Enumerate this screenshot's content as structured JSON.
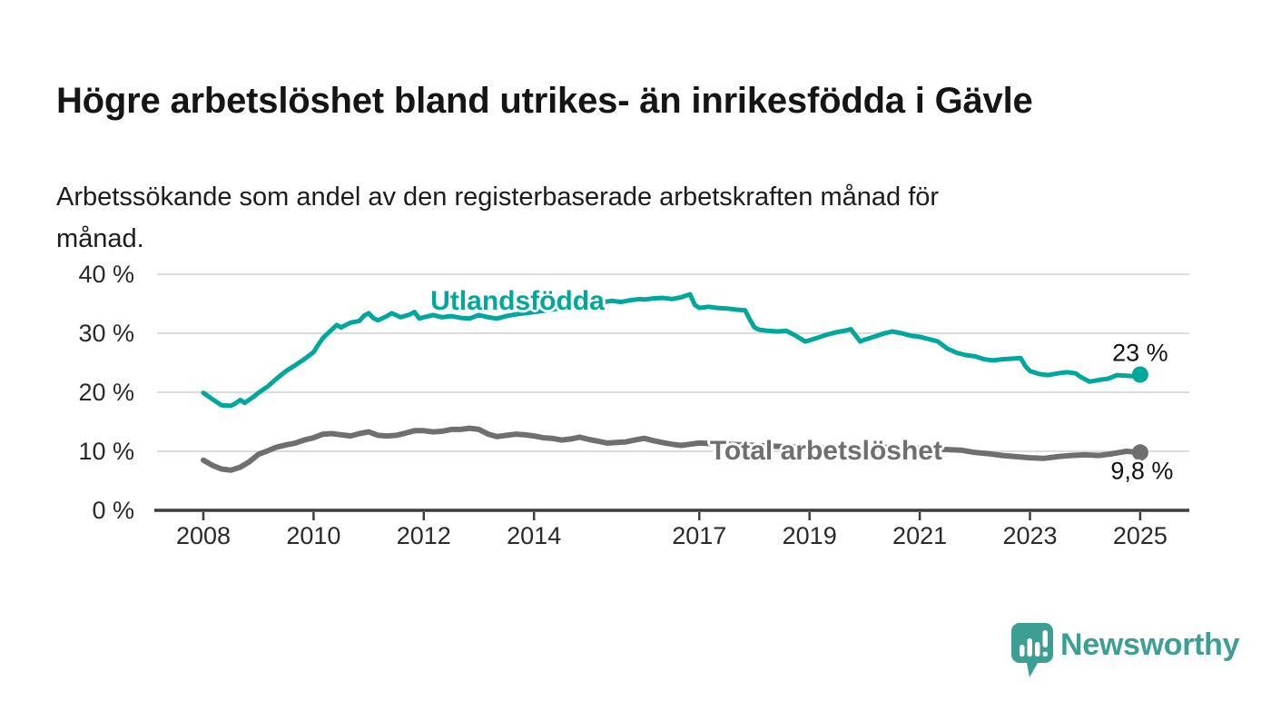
{
  "header": {
    "title": "Högre arbetslöshet bland utrikes- än inrikesfödda i Gävle",
    "subtitle": "Arbetssökande som andel av den registerbaserade arbetskraften månad för\nmånad."
  },
  "chart_data": {
    "type": "line",
    "title": "Högre arbetslöshet bland utrikes- än inrikesfödda i Gävle",
    "xlabel": "",
    "ylabel": "Arbetssökande som andel av den registerbaserade arbetskraften",
    "x_range": [
      2007.1,
      2025.9
    ],
    "ylim": [
      0,
      40
    ],
    "grid": true,
    "legend_position": "inline-labels",
    "x_axis_ticks": [
      {
        "v": 2008,
        "label": "2008"
      },
      {
        "v": 2010,
        "label": "2010"
      },
      {
        "v": 2012,
        "label": "2012"
      },
      {
        "v": 2014,
        "label": "2014"
      },
      {
        "v": 2017,
        "label": "2017"
      },
      {
        "v": 2019,
        "label": "2019"
      },
      {
        "v": 2021,
        "label": "2021"
      },
      {
        "v": 2023,
        "label": "2023"
      },
      {
        "v": 2025,
        "label": "2025"
      }
    ],
    "y_axis_ticks": [
      {
        "v": 40,
        "label": "40 %"
      },
      {
        "v": 30,
        "label": "30 %"
      },
      {
        "v": 20,
        "label": "20 %"
      },
      {
        "v": 10,
        "label": "10 %"
      },
      {
        "v": 0,
        "label": "0 %"
      }
    ],
    "series": [
      {
        "id": "total",
        "name": "Total arbetslöshet",
        "color": "#6f6f6f",
        "line_width": 6,
        "end_value": 9.8,
        "end_label": "9,8 %",
        "points": [
          [
            2008.0,
            8.5
          ],
          [
            2008.17,
            7.6
          ],
          [
            2008.33,
            7.0
          ],
          [
            2008.5,
            6.8
          ],
          [
            2008.67,
            7.3
          ],
          [
            2008.83,
            8.2
          ],
          [
            2009.0,
            9.5
          ],
          [
            2009.17,
            10.1
          ],
          [
            2009.33,
            10.7
          ],
          [
            2009.5,
            11.1
          ],
          [
            2009.67,
            11.4
          ],
          [
            2009.83,
            11.9
          ],
          [
            2010.0,
            12.3
          ],
          [
            2010.17,
            12.9
          ],
          [
            2010.33,
            13.0
          ],
          [
            2010.5,
            12.8
          ],
          [
            2010.67,
            12.6
          ],
          [
            2010.83,
            13.0
          ],
          [
            2011.0,
            13.3
          ],
          [
            2011.17,
            12.7
          ],
          [
            2011.33,
            12.6
          ],
          [
            2011.5,
            12.7
          ],
          [
            2011.67,
            13.1
          ],
          [
            2011.83,
            13.5
          ],
          [
            2012.0,
            13.5
          ],
          [
            2012.17,
            13.3
          ],
          [
            2012.33,
            13.4
          ],
          [
            2012.5,
            13.7
          ],
          [
            2012.67,
            13.7
          ],
          [
            2012.83,
            13.9
          ],
          [
            2013.0,
            13.7
          ],
          [
            2013.17,
            12.9
          ],
          [
            2013.33,
            12.5
          ],
          [
            2013.5,
            12.7
          ],
          [
            2013.67,
            12.9
          ],
          [
            2013.83,
            12.8
          ],
          [
            2014.0,
            12.6
          ],
          [
            2014.17,
            12.3
          ],
          [
            2014.33,
            12.2
          ],
          [
            2014.5,
            11.9
          ],
          [
            2014.67,
            12.1
          ],
          [
            2014.83,
            12.4
          ],
          [
            2015.0,
            12.0
          ],
          [
            2015.17,
            11.7
          ],
          [
            2015.33,
            11.4
          ],
          [
            2015.5,
            11.5
          ],
          [
            2015.67,
            11.6
          ],
          [
            2015.83,
            11.9
          ],
          [
            2016.0,
            12.2
          ],
          [
            2016.17,
            11.8
          ],
          [
            2016.33,
            11.5
          ],
          [
            2016.5,
            11.2
          ],
          [
            2016.67,
            11.0
          ],
          [
            2016.83,
            11.2
          ],
          [
            2017.0,
            11.4
          ],
          [
            2017.25,
            11.3
          ],
          [
            2017.5,
            11.2
          ],
          [
            2017.75,
            11.1
          ],
          [
            2018.0,
            11.0
          ],
          [
            2018.25,
            10.9
          ],
          [
            2018.5,
            10.8
          ],
          [
            2018.75,
            10.7
          ],
          [
            2019.0,
            10.6
          ],
          [
            2019.25,
            10.5
          ],
          [
            2019.5,
            10.5
          ],
          [
            2019.75,
            10.4
          ],
          [
            2020.0,
            10.4
          ],
          [
            2020.25,
            10.6
          ],
          [
            2020.5,
            10.7
          ],
          [
            2020.75,
            10.6
          ],
          [
            2021.0,
            10.5
          ],
          [
            2021.25,
            10.4
          ],
          [
            2021.5,
            10.3
          ],
          [
            2021.75,
            10.2
          ],
          [
            2022.0,
            9.8
          ],
          [
            2022.25,
            9.6
          ],
          [
            2022.5,
            9.3
          ],
          [
            2022.75,
            9.1
          ],
          [
            2023.0,
            8.9
          ],
          [
            2023.25,
            8.8
          ],
          [
            2023.5,
            9.1
          ],
          [
            2023.75,
            9.3
          ],
          [
            2024.0,
            9.4
          ],
          [
            2024.25,
            9.3
          ],
          [
            2024.5,
            9.6
          ],
          [
            2024.75,
            10.0
          ],
          [
            2025.0,
            9.8
          ]
        ]
      },
      {
        "id": "utlandsfodda",
        "name": "Utlandsfödda",
        "color": "#00a79b",
        "line_width": 5,
        "end_value": 23,
        "end_label": "23 %",
        "points": [
          [
            2008.0,
            19.9
          ],
          [
            2008.17,
            18.8
          ],
          [
            2008.33,
            17.8
          ],
          [
            2008.5,
            17.7
          ],
          [
            2008.58,
            18.1
          ],
          [
            2008.67,
            18.7
          ],
          [
            2008.75,
            18.2
          ],
          [
            2008.92,
            19.3
          ],
          [
            2009.0,
            19.9
          ],
          [
            2009.17,
            21.0
          ],
          [
            2009.33,
            22.3
          ],
          [
            2009.5,
            23.6
          ],
          [
            2009.67,
            24.6
          ],
          [
            2009.83,
            25.6
          ],
          [
            2010.0,
            26.8
          ],
          [
            2010.08,
            28.0
          ],
          [
            2010.17,
            29.2
          ],
          [
            2010.33,
            30.6
          ],
          [
            2010.42,
            31.4
          ],
          [
            2010.5,
            31.0
          ],
          [
            2010.67,
            31.8
          ],
          [
            2010.83,
            32.1
          ],
          [
            2010.92,
            33.0
          ],
          [
            2011.0,
            33.4
          ],
          [
            2011.08,
            32.6
          ],
          [
            2011.17,
            32.2
          ],
          [
            2011.33,
            32.9
          ],
          [
            2011.42,
            33.4
          ],
          [
            2011.58,
            32.7
          ],
          [
            2011.75,
            33.2
          ],
          [
            2011.83,
            33.6
          ],
          [
            2011.92,
            32.5
          ],
          [
            2012.0,
            32.7
          ],
          [
            2012.17,
            33.1
          ],
          [
            2012.33,
            32.7
          ],
          [
            2012.5,
            32.9
          ],
          [
            2012.67,
            32.6
          ],
          [
            2012.83,
            32.5
          ],
          [
            2013.0,
            33.1
          ],
          [
            2013.17,
            32.7
          ],
          [
            2013.33,
            32.5
          ],
          [
            2013.5,
            32.9
          ],
          [
            2013.67,
            33.2
          ],
          [
            2013.83,
            33.4
          ],
          [
            2014.0,
            33.6
          ],
          [
            2014.25,
            33.9
          ],
          [
            2014.5,
            34.3
          ],
          [
            2014.75,
            34.7
          ],
          [
            2015.0,
            35.0
          ],
          [
            2015.25,
            35.3
          ],
          [
            2015.42,
            35.5
          ],
          [
            2015.58,
            35.3
          ],
          [
            2015.75,
            35.6
          ],
          [
            2015.92,
            35.8
          ],
          [
            2016.0,
            35.7
          ],
          [
            2016.17,
            35.9
          ],
          [
            2016.33,
            36.0
          ],
          [
            2016.5,
            35.8
          ],
          [
            2016.67,
            36.1
          ],
          [
            2016.83,
            36.6
          ],
          [
            2016.92,
            34.8
          ],
          [
            2017.0,
            34.3
          ],
          [
            2017.17,
            34.5
          ],
          [
            2017.33,
            34.3
          ],
          [
            2017.5,
            34.2
          ],
          [
            2017.67,
            34.0
          ],
          [
            2017.83,
            33.9
          ],
          [
            2017.92,
            32.3
          ],
          [
            2018.0,
            31.0
          ],
          [
            2018.08,
            30.6
          ],
          [
            2018.25,
            30.4
          ],
          [
            2018.42,
            30.3
          ],
          [
            2018.58,
            30.4
          ],
          [
            2018.75,
            29.6
          ],
          [
            2018.92,
            28.6
          ],
          [
            2019.0,
            28.8
          ],
          [
            2019.17,
            29.3
          ],
          [
            2019.33,
            29.8
          ],
          [
            2019.5,
            30.2
          ],
          [
            2019.67,
            30.5
          ],
          [
            2019.75,
            30.7
          ],
          [
            2019.92,
            28.6
          ],
          [
            2020.0,
            28.9
          ],
          [
            2020.17,
            29.4
          ],
          [
            2020.33,
            29.9
          ],
          [
            2020.5,
            30.3
          ],
          [
            2020.67,
            30.0
          ],
          [
            2020.83,
            29.6
          ],
          [
            2021.0,
            29.4
          ],
          [
            2021.17,
            29.0
          ],
          [
            2021.33,
            28.6
          ],
          [
            2021.5,
            27.4
          ],
          [
            2021.67,
            26.7
          ],
          [
            2021.83,
            26.3
          ],
          [
            2022.0,
            26.1
          ],
          [
            2022.17,
            25.6
          ],
          [
            2022.33,
            25.4
          ],
          [
            2022.5,
            25.6
          ],
          [
            2022.67,
            25.7
          ],
          [
            2022.83,
            25.8
          ],
          [
            2022.92,
            24.4
          ],
          [
            2023.0,
            23.6
          ],
          [
            2023.17,
            23.1
          ],
          [
            2023.33,
            22.9
          ],
          [
            2023.5,
            23.2
          ],
          [
            2023.67,
            23.4
          ],
          [
            2023.83,
            23.2
          ],
          [
            2023.92,
            22.6
          ],
          [
            2024.08,
            21.8
          ],
          [
            2024.25,
            22.1
          ],
          [
            2024.42,
            22.3
          ],
          [
            2024.58,
            22.9
          ],
          [
            2024.75,
            22.8
          ],
          [
            2024.92,
            22.7
          ],
          [
            2025.0,
            23.0
          ]
        ]
      }
    ],
    "series_labels": [
      {
        "for": "utlandsfodda",
        "text": "Utlandsfödda",
        "x": 2013.7,
        "y": 35.4,
        "color": "#00a79b"
      },
      {
        "for": "total",
        "text": "Total arbetslöshet",
        "x": 2019.3,
        "y": 10.0,
        "color": "#6f6f6f"
      }
    ],
    "colors": {
      "grid": "#dcdcdc",
      "axis": "#3c3c3c",
      "tick_text": "#2a2a2a",
      "value_text": "#111111"
    }
  },
  "footer": {
    "brand": "Newsworthy",
    "brand_color": "#3d9f94"
  }
}
